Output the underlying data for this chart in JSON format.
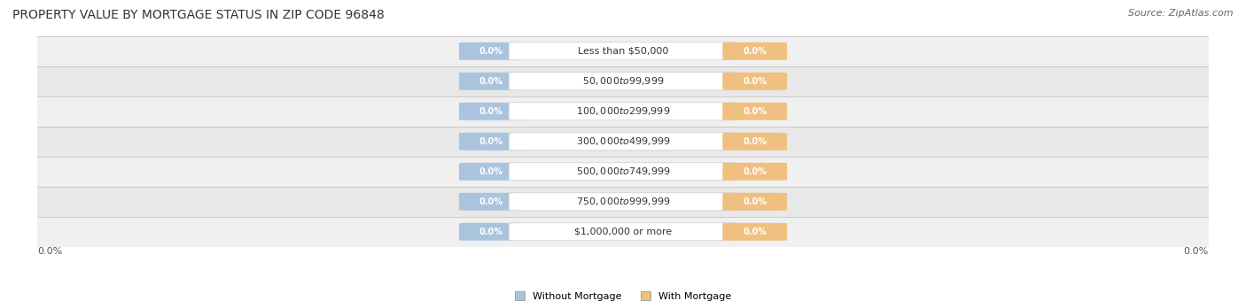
{
  "title": "PROPERTY VALUE BY MORTGAGE STATUS IN ZIP CODE 96848",
  "source": "Source: ZipAtlas.com",
  "categories": [
    "Less than $50,000",
    "$50,000 to $99,999",
    "$100,000 to $299,999",
    "$300,000 to $499,999",
    "$500,000 to $749,999",
    "$750,000 to $999,999",
    "$1,000,000 or more"
  ],
  "without_mortgage": [
    0.0,
    0.0,
    0.0,
    0.0,
    0.0,
    0.0,
    0.0
  ],
  "with_mortgage": [
    0.0,
    0.0,
    0.0,
    0.0,
    0.0,
    0.0,
    0.0
  ],
  "without_mortgage_color": "#aac4de",
  "with_mortgage_color": "#f0c080",
  "row_bg_colors": [
    "#f0f0f0",
    "#e8e8e8"
  ],
  "label_bg_color": "#ffffff",
  "label_border_color": "#cccccc",
  "axis_label_left": "0.0%",
  "axis_label_right": "0.0%",
  "title_fontsize": 10,
  "source_fontsize": 8,
  "category_fontsize": 8,
  "pill_fontsize": 7,
  "xlim": [
    -1.0,
    1.0
  ]
}
